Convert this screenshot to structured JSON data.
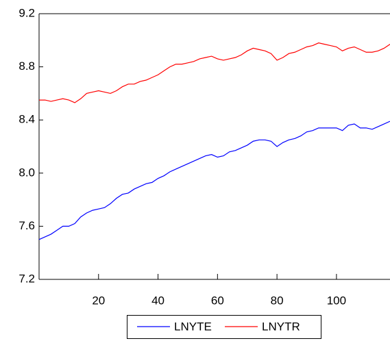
{
  "chart_data": {
    "type": "line",
    "x": [
      0,
      2,
      4,
      6,
      8,
      10,
      12,
      14,
      16,
      18,
      20,
      22,
      24,
      26,
      28,
      30,
      32,
      34,
      36,
      38,
      40,
      42,
      44,
      46,
      48,
      50,
      52,
      54,
      56,
      58,
      60,
      62,
      64,
      66,
      68,
      70,
      72,
      74,
      76,
      78,
      80,
      82,
      84,
      86,
      88,
      90,
      92,
      94,
      96,
      98,
      100,
      102,
      104,
      106,
      108,
      110,
      112,
      114,
      116,
      118
    ],
    "series": [
      {
        "name": "LNYTE",
        "color": "#0000ff",
        "values": [
          7.5,
          7.52,
          7.54,
          7.57,
          7.6,
          7.6,
          7.62,
          7.67,
          7.7,
          7.72,
          7.73,
          7.74,
          7.77,
          7.81,
          7.84,
          7.85,
          7.88,
          7.9,
          7.92,
          7.93,
          7.96,
          7.98,
          8.01,
          8.03,
          8.05,
          8.07,
          8.09,
          8.11,
          8.13,
          8.14,
          8.12,
          8.13,
          8.16,
          8.17,
          8.19,
          8.21,
          8.24,
          8.25,
          8.25,
          8.24,
          8.2,
          8.23,
          8.25,
          8.26,
          8.28,
          8.31,
          8.32,
          8.34,
          8.34,
          8.34,
          8.34,
          8.32,
          8.36,
          8.37,
          8.34,
          8.34,
          8.33,
          8.35,
          8.37,
          8.39
        ]
      },
      {
        "name": "LNYTR",
        "color": "#ff0000",
        "values": [
          8.55,
          8.55,
          8.54,
          8.55,
          8.56,
          8.55,
          8.53,
          8.56,
          8.6,
          8.61,
          8.62,
          8.61,
          8.6,
          8.62,
          8.65,
          8.67,
          8.67,
          8.69,
          8.7,
          8.72,
          8.74,
          8.77,
          8.8,
          8.82,
          8.82,
          8.83,
          8.84,
          8.86,
          8.87,
          8.88,
          8.86,
          8.85,
          8.86,
          8.87,
          8.89,
          8.92,
          8.94,
          8.93,
          8.92,
          8.9,
          8.85,
          8.87,
          8.9,
          8.91,
          8.93,
          8.95,
          8.96,
          8.98,
          8.97,
          8.96,
          8.95,
          8.92,
          8.94,
          8.95,
          8.93,
          8.91,
          8.91,
          8.92,
          8.94,
          8.97
        ]
      }
    ],
    "xlim": [
      0,
      118
    ],
    "xticks": [
      20,
      40,
      60,
      80,
      100
    ],
    "ylim": [
      7.2,
      9.2
    ],
    "yticks": [
      7.2,
      7.6,
      {
        "value": 8,
        "label": "8.0"
      },
      8.4,
      8.8,
      9.2
    ]
  }
}
